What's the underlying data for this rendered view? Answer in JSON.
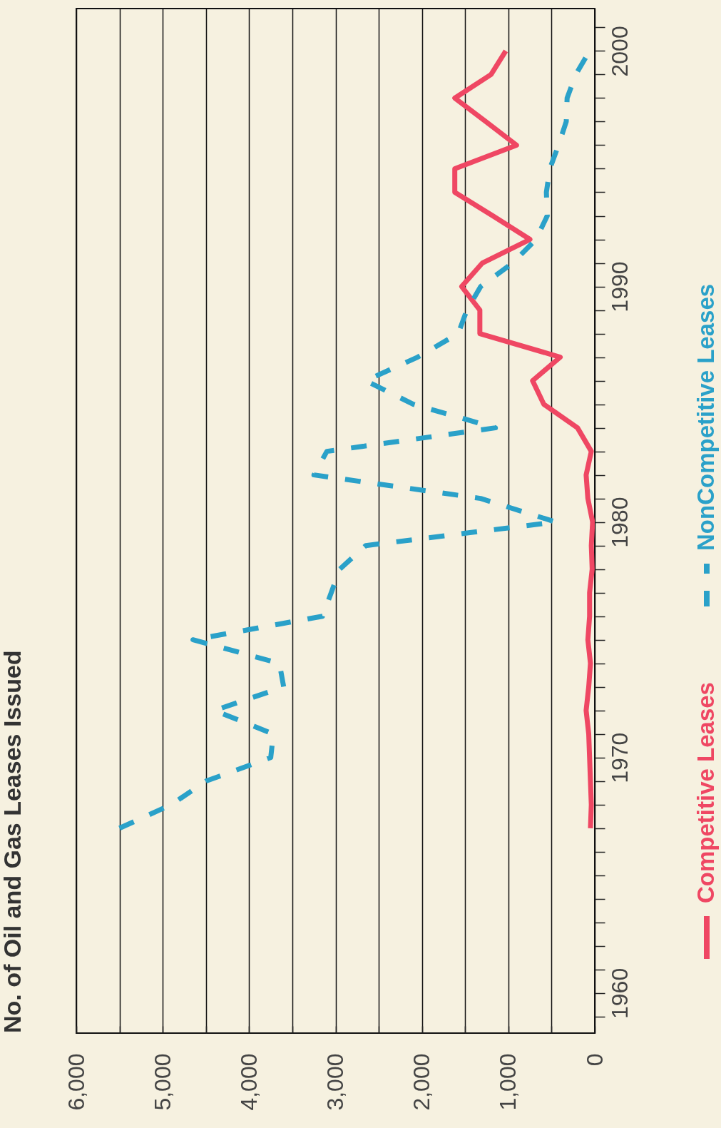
{
  "chart_data": {
    "type": "line",
    "title": "No. of Oil and Gas Leases Issued",
    "xlim": [
      6000,
      0
    ],
    "xticks": [
      0,
      {
        "value": 500,
        "label": null
      },
      {
        "value": 1000,
        "label": "1,000"
      },
      {
        "value": 1500,
        "label": null
      },
      {
        "value": 2000,
        "label": "2,000"
      },
      {
        "value": 2500,
        "label": null
      },
      {
        "value": 3000,
        "label": "3,000"
      },
      {
        "value": 3500,
        "label": null
      },
      {
        "value": 4000,
        "label": "4,000"
      },
      {
        "value": 4500,
        "label": null
      },
      {
        "value": 5000,
        "label": "5,000"
      },
      {
        "value": 5500,
        "label": null
      },
      {
        "value": 6000,
        "label": "6,000"
      }
    ],
    "ylim": [
      1958.3,
      2001.8
    ],
    "yticks": [
      {
        "value": 1959,
        "label": null
      },
      1960,
      {
        "value": 1961,
        "label": null
      },
      {
        "value": 1962,
        "label": null
      },
      {
        "value": 1963,
        "label": null
      },
      {
        "value": 1964,
        "label": null
      },
      {
        "value": 1965,
        "label": null
      },
      {
        "value": 1966,
        "label": null
      },
      {
        "value": 1967,
        "label": null
      },
      {
        "value": 1968,
        "label": null
      },
      {
        "value": 1969,
        "label": null
      },
      1970,
      {
        "value": 1971,
        "label": null
      },
      {
        "value": 1972,
        "label": null
      },
      {
        "value": 1973,
        "label": null
      },
      {
        "value": 1974,
        "label": null
      },
      {
        "value": 1975,
        "label": null
      },
      {
        "value": 1976,
        "label": null
      },
      {
        "value": 1977,
        "label": null
      },
      {
        "value": 1978,
        "label": null
      },
      {
        "value": 1979,
        "label": null
      },
      1980,
      {
        "value": 1981,
        "label": null
      },
      {
        "value": 1982,
        "label": null
      },
      {
        "value": 1983,
        "label": null
      },
      {
        "value": 1984,
        "label": null
      },
      {
        "value": 1985,
        "label": null
      },
      {
        "value": 1986,
        "label": null
      },
      {
        "value": 1987,
        "label": null
      },
      {
        "value": 1988,
        "label": null
      },
      {
        "value": 1989,
        "label": null
      },
      1990,
      {
        "value": 1991,
        "label": null
      },
      {
        "value": 1992,
        "label": null
      },
      {
        "value": 1993,
        "label": null
      },
      {
        "value": 1994,
        "label": null
      },
      {
        "value": 1995,
        "label": null
      },
      {
        "value": 1996,
        "label": null
      },
      {
        "value": 1997,
        "label": null
      },
      {
        "value": 1998,
        "label": null
      },
      {
        "value": 1999,
        "label": null
      },
      2000,
      {
        "value": 2001,
        "label": null
      }
    ],
    "grid": "x",
    "legend": "right",
    "series": [
      {
        "name": "Competitive Leases",
        "color": "#ef4763",
        "line_style": "solid",
        "values": [
          1967,
          1968,
          1969,
          1970,
          1971,
          1972,
          1973,
          1974,
          1975,
          1976,
          1977,
          1978,
          1979,
          1980,
          1981,
          1982,
          1983,
          1984,
          1985,
          1986,
          1987,
          1988,
          1989,
          1990,
          1991,
          1992,
          1993,
          1994,
          1995,
          1996,
          1997,
          1998,
          1999,
          2000
        ],
        "x": [
          50,
          40,
          50,
          60,
          70,
          100,
          70,
          50,
          80,
          60,
          60,
          30,
          40,
          25,
          80,
          100,
          40,
          200,
          590,
          720,
          400,
          1330,
          1330,
          1540,
          1300,
          750,
          1180,
          1620,
          1620,
          905,
          1260,
          1620,
          1200,
          1030
        ]
      },
      {
        "name": "NonCompetitive Leases",
        "color": "#2aa1c9",
        "line_style": "dashed",
        "values": [
          1967,
          1968,
          1969,
          1970,
          1971,
          1972,
          1973,
          1974,
          1975,
          1976,
          1977,
          1978,
          1979,
          1980,
          1981,
          1982,
          1983,
          1984,
          1985,
          1986,
          1987,
          1988,
          1989,
          1990,
          1991,
          1992,
          1993,
          1994,
          1995,
          1996,
          1997,
          1998,
          1999,
          2000
        ],
        "x": [
          5500,
          4900,
          4500,
          3750,
          3720,
          4400,
          3600,
          3650,
          4650,
          3150,
          3050,
          2950,
          2650,
          450,
          1320,
          3250,
          3100,
          1150,
          2100,
          2650,
          2050,
          1580,
          1480,
          1320,
          950,
          680,
          550,
          560,
          520,
          420,
          330,
          320,
          220,
          60
        ]
      }
    ]
  }
}
